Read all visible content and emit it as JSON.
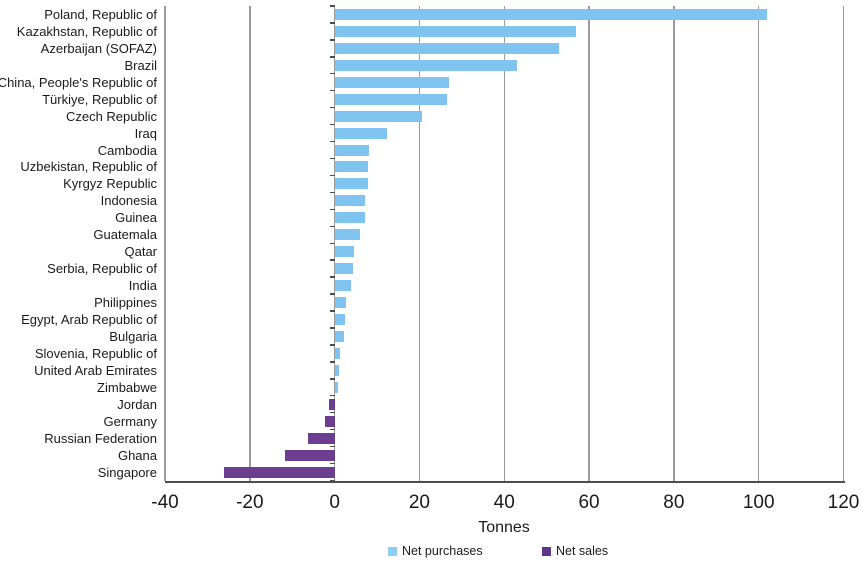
{
  "chart_data": {
    "type": "bar",
    "orientation": "horizontal",
    "title": "",
    "xlabel": "Tonnes",
    "xlim": [
      -40,
      120
    ],
    "xticks": [
      -40,
      -20,
      0,
      20,
      40,
      60,
      80,
      100,
      120
    ],
    "grid": "vertical-gridlines-at-each-tick",
    "legend_position": "bottom-center",
    "series_semantics": "single series: positive bars = net purchases (blue), negative bars = net sales (purple)",
    "categories": [
      "Poland, Republic of",
      "Kazakhstan, Republic of",
      "Azerbaijan (SOFAZ)",
      "Brazil",
      "China, People's Republic of",
      "Türkiye, Republic of",
      "Czech Republic",
      "Iraq",
      "Cambodia",
      "Uzbekistan, Republic of",
      "Kyrgyz Republic",
      "Indonesia",
      "Guinea",
      "Guatemala",
      "Qatar",
      "Serbia, Republic of",
      "India",
      "Philippines",
      "Egypt, Arab Republic of",
      "Bulgaria",
      "Slovenia, Republic of",
      "United Arab Emirates",
      "Zimbabwe",
      "Jordan",
      "Germany",
      "Russian Federation",
      "Ghana",
      "Singapore"
    ],
    "values": [
      102,
      57,
      53,
      43,
      27,
      26.5,
      20.5,
      12.3,
      8.1,
      7.9,
      7.9,
      7.1,
      7.1,
      6.1,
      4.5,
      4.3,
      3.8,
      2.7,
      2.4,
      2.1,
      1.2,
      1.0,
      0.9,
      -1.4,
      -2.2,
      -6.3,
      -11.7,
      -26.2
    ],
    "legend": [
      {
        "label": "Net purchases",
        "color": "#7fc3f1",
        "swatch_color": "#8ecef5"
      },
      {
        "label": "Net sales",
        "color": "#6b3e8f",
        "swatch_color": "#5e3389"
      }
    ]
  },
  "colors": {
    "net_purchases": "#7fc3f1",
    "net_sales": "#6b3e8f",
    "gridline": "#9b9b9b",
    "axis": "#4d4d4d",
    "text": "#1a1a1a",
    "background": "#ffffff"
  }
}
